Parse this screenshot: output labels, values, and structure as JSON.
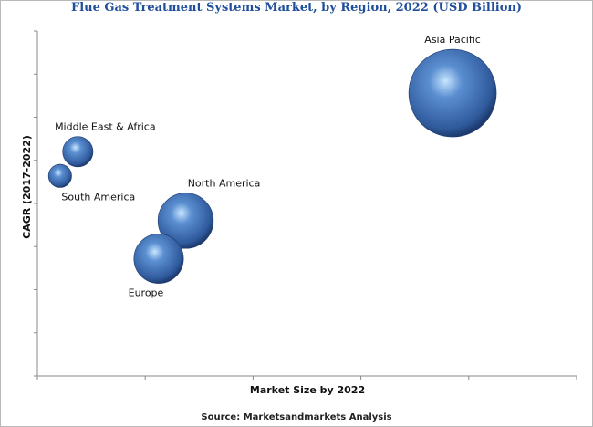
{
  "chart_data": {
    "type": "scatter",
    "title": "Flue Gas Treatment Systems Market, by Region, 2022 (USD Billion)",
    "xlabel": "Market Size by 2022",
    "ylabel": "CAGR (2017-2022)",
    "xlim": [
      0,
      10
    ],
    "ylim": [
      0,
      10
    ],
    "grid": false,
    "legend": "none",
    "tick_labels": false,
    "series": [
      {
        "name": "Asia Pacific",
        "x": 7.7,
        "y": 8.2,
        "size": 10.0,
        "label_position": "above"
      },
      {
        "name": "Middle East & Africa",
        "x": 0.75,
        "y": 6.5,
        "size": 1.2,
        "label_position": "above"
      },
      {
        "name": "South America",
        "x": 0.42,
        "y": 5.8,
        "size": 0.7,
        "label_position": "below"
      },
      {
        "name": "North America",
        "x": 2.75,
        "y": 4.5,
        "size": 4.0,
        "label_position": "above"
      },
      {
        "name": "Europe",
        "x": 2.25,
        "y": 3.4,
        "size": 3.2,
        "label_position": "below"
      }
    ],
    "colors": {
      "bubble_light": "#c8e6ff",
      "bubble_mid": "#5b8fd1",
      "bubble_dark": "#1d3b6f",
      "title": "#1f4e9a",
      "axis": "#888888"
    },
    "source": "Source: Marketsandmarkets Analysis"
  }
}
